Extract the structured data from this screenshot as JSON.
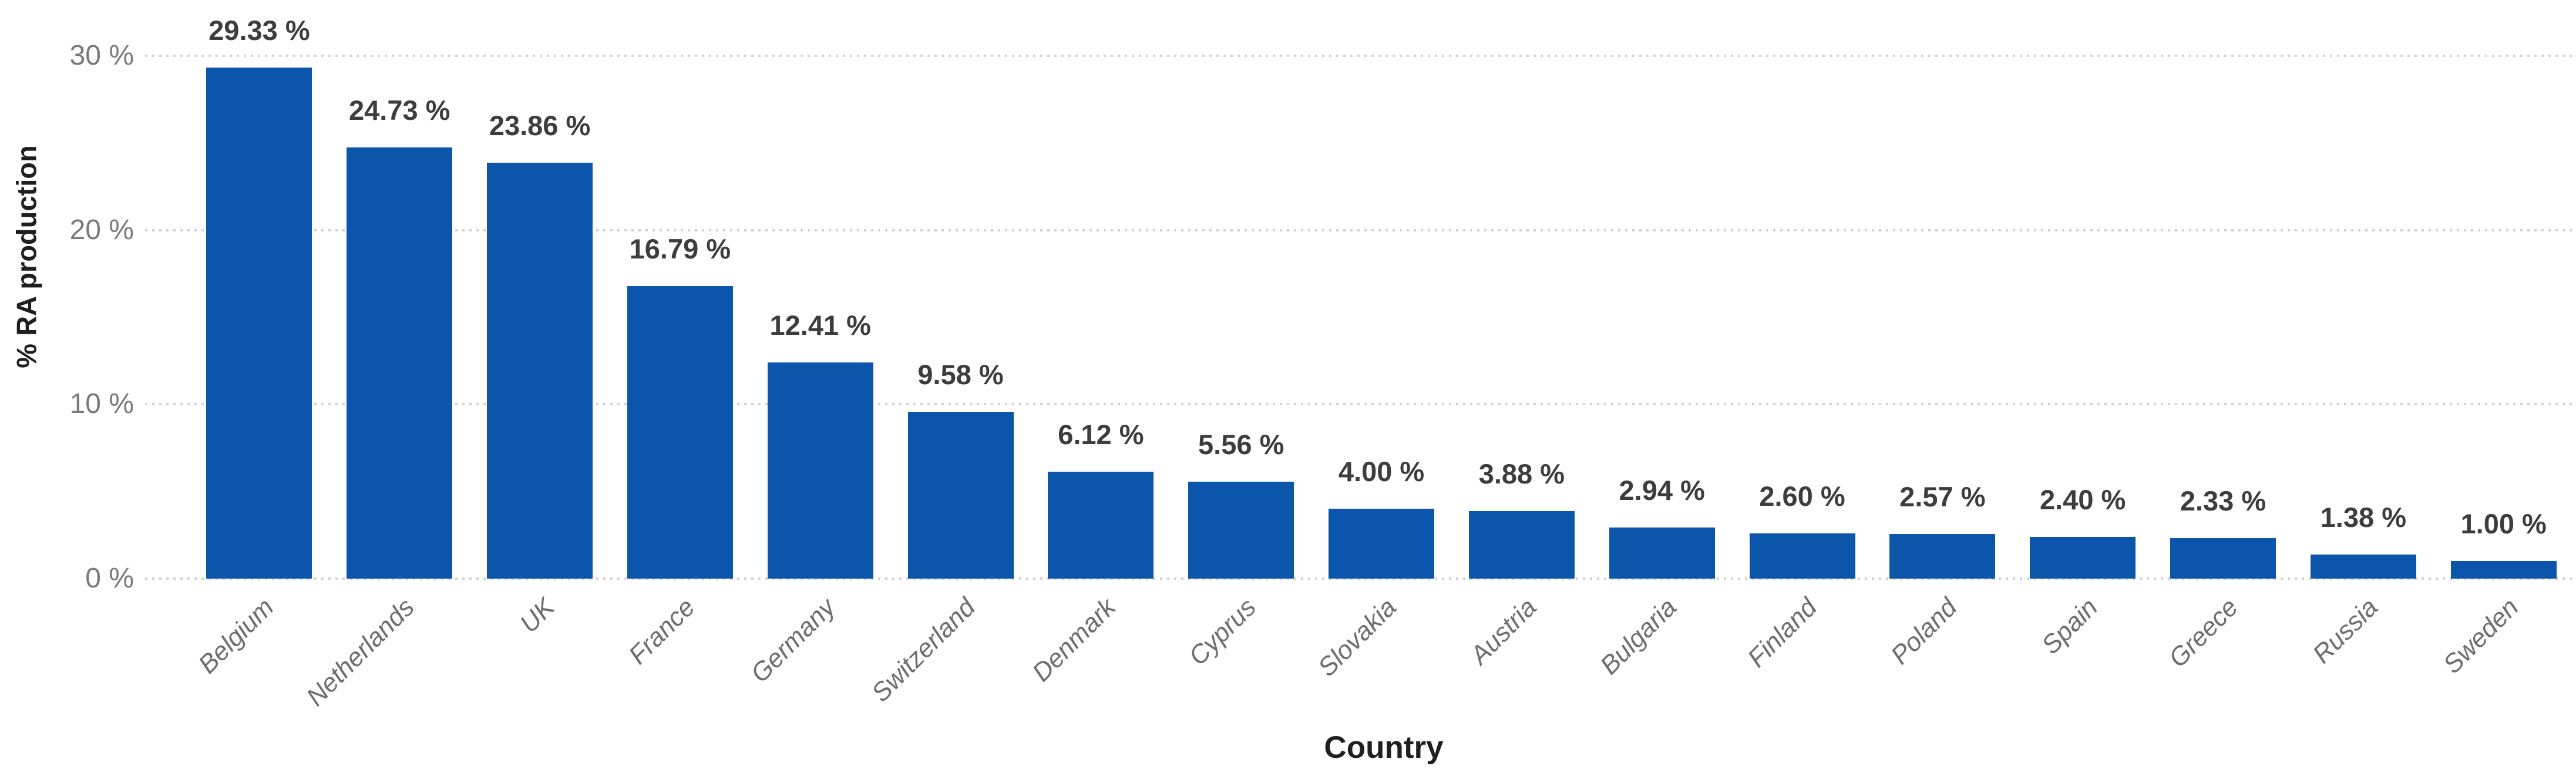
{
  "chart_data": {
    "type": "bar",
    "title": "",
    "xlabel": "Country",
    "ylabel": "% RA production",
    "categories": [
      "Belgium",
      "Netherlands",
      "UK",
      "France",
      "Germany",
      "Switzerland",
      "Denmark",
      "Cyprus",
      "Slovakia",
      "Austria",
      "Bulgaria",
      "Finland",
      "Poland",
      "Spain",
      "Greece",
      "Russia",
      "Sweden"
    ],
    "values": [
      29.33,
      24.73,
      23.86,
      16.79,
      12.41,
      9.58,
      6.12,
      5.56,
      4.0,
      3.88,
      2.94,
      2.6,
      2.57,
      2.4,
      2.33,
      1.38,
      1.0
    ],
    "value_labels": [
      "29.33 %",
      "24.73 %",
      "23.86 %",
      "16.79 %",
      "12.41 %",
      "9.58 %",
      "6.12 %",
      "5.56 %",
      "4.00 %",
      "3.88 %",
      "2.94 %",
      "2.60 %",
      "2.57 %",
      "2.40 %",
      "2.33 %",
      "1.38 %",
      "1.00 %"
    ],
    "y_ticks": [
      {
        "value": 0,
        "label": "0 %"
      },
      {
        "value": 10,
        "label": "10 %"
      },
      {
        "value": 20,
        "label": "20 %"
      },
      {
        "value": 30,
        "label": "30 %"
      }
    ],
    "ylim": [
      0,
      30
    ],
    "grid": "horizontal-dotted",
    "legend": "none",
    "colors": {
      "bar": "#0b56ab",
      "value_label": "#3d3d3d",
      "axis_tick_label": "#7a7a7a",
      "category_label": "#6e6e6e",
      "axis_title": "#1f1f1f",
      "gridline": "#d2d2d2",
      "background": "#ffffff"
    }
  }
}
